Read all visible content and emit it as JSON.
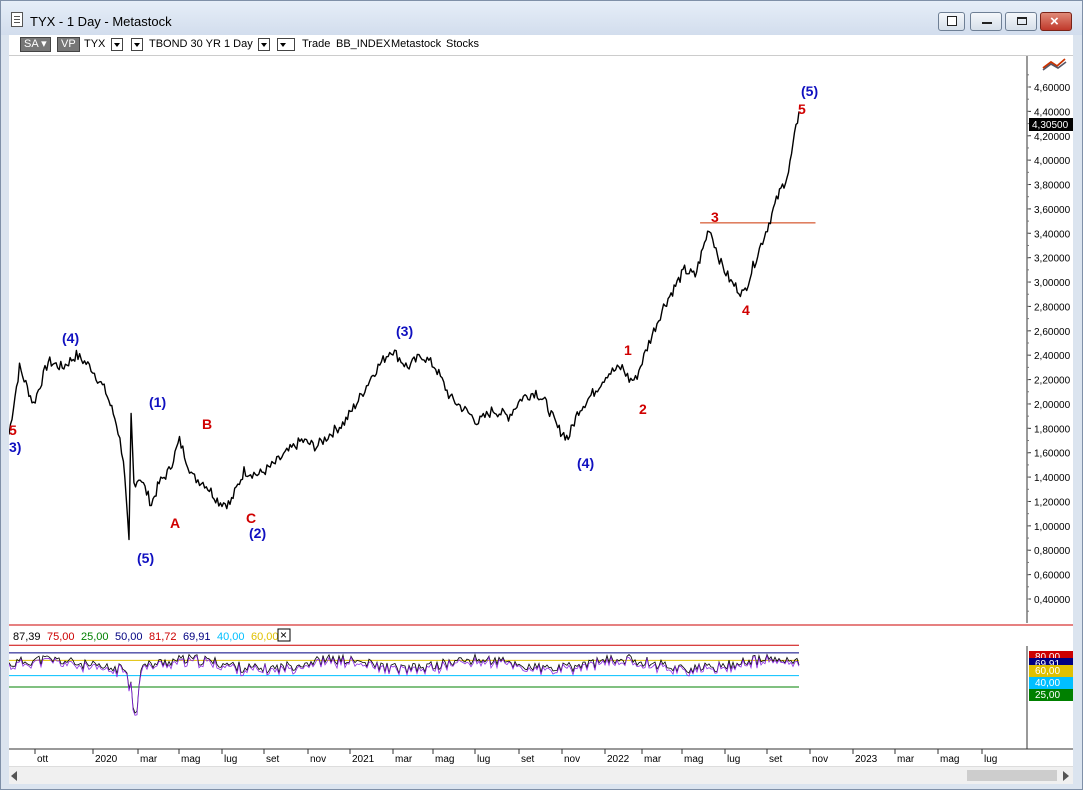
{
  "window": {
    "title": "TYX - 1 Day - Metastock"
  },
  "toolbar": {
    "sa": "SA",
    "vp": "VP",
    "symbol": "TYX",
    "description": "TBOND 30 YR",
    "period": "1 Day",
    "trade": "Trade",
    "index": "BB_INDEX",
    "source": "Metastock",
    "category": "Stocks"
  },
  "price_axis": {
    "ticks": [
      "4,60000",
      "4,40000",
      "4,20000",
      "4,00000",
      "3,80000",
      "3,60000",
      "3,40000",
      "3,20000",
      "3,00000",
      "2,80000",
      "2,60000",
      "2,40000",
      "2,20000",
      "2,00000",
      "1,80000",
      "1,60000",
      "1,40000",
      "1,20000",
      "1,00000",
      "0,80000",
      "0,60000",
      "0,40000"
    ],
    "last_price": "4,30500"
  },
  "indicator_legend": {
    "values": [
      {
        "text": "87,39",
        "color": "#000000"
      },
      {
        "text": "75,00",
        "color": "#cc0000"
      },
      {
        "text": "25,00",
        "color": "#008000"
      },
      {
        "text": "50,00",
        "color": "#000080"
      },
      {
        "text": "81,72",
        "color": "#cc0000"
      },
      {
        "text": "69,91",
        "color": "#000080"
      },
      {
        "text": "40,00",
        "color": "#00bfff"
      },
      {
        "text": "60,00",
        "color": "#e0c000"
      }
    ],
    "close_glyph": "×"
  },
  "indicator_axis": {
    "tags": [
      {
        "text": "80,00",
        "bg": "#cc0000",
        "fg": "#ffffff"
      },
      {
        "text": "69,91",
        "bg": "#000080",
        "fg": "#ffffff"
      },
      {
        "text": "60,00",
        "bg": "#e0c000",
        "fg": "#ffffff"
      },
      {
        "text": "40,00",
        "bg": "#00bfff",
        "fg": "#ffffff"
      },
      {
        "text": "25,00",
        "bg": "#008000",
        "fg": "#ffffff"
      }
    ]
  },
  "time_axis": {
    "labels": [
      "ott",
      "2020",
      "mar",
      "mag",
      "lug",
      "set",
      "nov",
      "2021",
      "mar",
      "mag",
      "lug",
      "set",
      "nov",
      "2022",
      "mar",
      "mag",
      "lug",
      "set",
      "nov",
      "2023",
      "mar",
      "mag",
      "lug"
    ]
  },
  "wave_labels": [
    {
      "text": "5",
      "color": "#d00000"
    },
    {
      "text": "3)",
      "color": "#1010c0"
    },
    {
      "text": "(4)",
      "color": "#1010c0"
    },
    {
      "text": "(1)",
      "color": "#1010c0"
    },
    {
      "text": "(5)",
      "color": "#1010c0"
    },
    {
      "text": "B",
      "color": "#d00000"
    },
    {
      "text": "A",
      "color": "#d00000"
    },
    {
      "text": "C",
      "color": "#d00000"
    },
    {
      "text": "(2)",
      "color": "#1010c0"
    },
    {
      "text": "(3)",
      "color": "#1010c0"
    },
    {
      "text": "(4)",
      "color": "#1010c0"
    },
    {
      "text": "1",
      "color": "#d00000"
    },
    {
      "text": "2",
      "color": "#d00000"
    },
    {
      "text": "3",
      "color": "#d00000"
    },
    {
      "text": "4",
      "color": "#d00000"
    },
    {
      "text": "(5)",
      "color": "#1010c0"
    },
    {
      "text": "5",
      "color": "#d00000"
    }
  ],
  "chart_data": {
    "type": "line",
    "series": [
      {
        "x": [
          "2019-09-20",
          "2019-10-05",
          "2019-10-25",
          "2019-11-15",
          "2019-12-05",
          "2019-12-25",
          "2020-01-15",
          "2020-02-05",
          "2020-02-20",
          "2020-03-01",
          "2020-03-09",
          "2020-03-12",
          "2020-03-16",
          "2020-03-25",
          "2020-04-10",
          "2020-04-21",
          "2020-05-05",
          "2020-05-20",
          "2020-06-08",
          "2020-06-25",
          "2020-07-15",
          "2020-07-31",
          "2020-08-20",
          "2020-09-10",
          "2020-10-01",
          "2020-10-20",
          "2020-11-10",
          "2020-12-01",
          "2020-12-20",
          "2021-01-10",
          "2021-02-01",
          "2021-02-20",
          "2021-03-18",
          "2021-04-10",
          "2021-05-01",
          "2021-05-20",
          "2021-06-10",
          "2021-07-01",
          "2021-07-20",
          "2021-08-10",
          "2021-09-01",
          "2021-09-20",
          "2021-10-10",
          "2021-10-25",
          "2021-11-10",
          "2021-11-25",
          "2021-12-10",
          "2022-01-01",
          "2022-01-20",
          "2022-02-10",
          "2022-02-20",
          "2022-03-01",
          "2022-03-20",
          "2022-04-10",
          "2022-04-25",
          "2022-05-10",
          "2022-05-25",
          "2022-06-14",
          "2022-07-01",
          "2022-07-15",
          "2022-08-02",
          "2022-08-20",
          "2022-09-05",
          "2022-09-20",
          "2022-10-05",
          "2022-10-20"
        ],
        "y": [
          1.75,
          2.3,
          2.0,
          2.35,
          2.3,
          2.4,
          2.3,
          2.1,
          1.85,
          1.55,
          0.85,
          1.9,
          1.35,
          1.4,
          1.18,
          1.35,
          1.45,
          1.7,
          1.4,
          1.35,
          1.2,
          1.18,
          1.45,
          1.42,
          1.5,
          1.6,
          1.7,
          1.65,
          1.75,
          1.85,
          2.05,
          2.25,
          2.45,
          2.3,
          2.4,
          2.3,
          2.05,
          1.95,
          1.85,
          1.95,
          1.9,
          2.05,
          2.1,
          2.0,
          1.8,
          1.72,
          1.95,
          2.1,
          2.25,
          2.3,
          2.2,
          2.2,
          2.5,
          2.8,
          2.95,
          3.1,
          3.05,
          3.45,
          3.15,
          3.0,
          2.9,
          3.2,
          3.45,
          3.7,
          3.9,
          4.4
        ]
      }
    ],
    "ylim": [
      0.3,
      4.75
    ],
    "annotations": [
      {
        "label": "horizontal-line",
        "y": 3.485,
        "color": "#cc3300"
      }
    ]
  }
}
